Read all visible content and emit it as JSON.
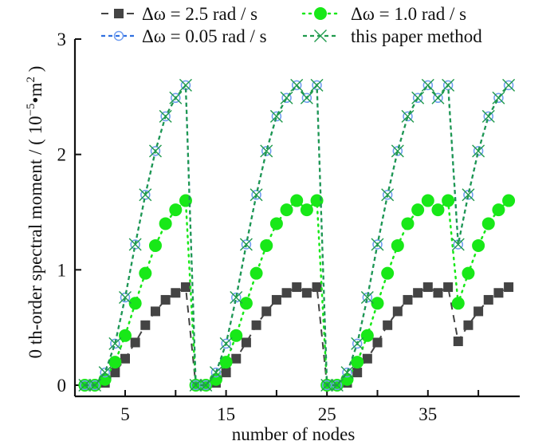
{
  "chart_data": {
    "type": "line",
    "title": "",
    "xlabel": "number of nodes",
    "ylabel": "0 th-order spectral moment  / ( 10⁻⁵•m² )",
    "ylabel_parts": {
      "main": "0 th-order spectral moment  / ( 10",
      "exp1": "−5",
      "mid": "•m",
      "exp2": "2",
      "end": " )"
    },
    "xlim": [
      0,
      47
    ],
    "ylim": [
      0,
      3
    ],
    "x_ticks": [
      5,
      10,
      15,
      20,
      25,
      30,
      35,
      40
    ],
    "x_tick_labels": [
      "5",
      "",
      "15",
      "",
      "25",
      "",
      "35",
      ""
    ],
    "y_ticks": [
      0,
      1,
      2,
      3
    ],
    "y_tick_labels": [
      "0",
      "1",
      "2",
      "3"
    ],
    "grid": false,
    "legend_position": "top",
    "x": [
      1,
      2,
      3,
      4,
      5,
      6,
      7,
      8,
      9,
      10,
      11,
      12,
      13,
      14,
      15,
      16,
      17,
      18,
      19,
      20,
      21,
      22,
      23,
      24,
      25,
      26,
      27,
      28,
      29,
      30,
      31,
      32,
      33,
      34,
      35,
      36,
      37,
      38,
      39,
      40,
      41,
      42,
      43
    ],
    "series": [
      {
        "name": "Δω = 2.5 rad / s",
        "legend_label": "Δω = 2.5 rad / s",
        "color": "#444444",
        "line_style": "long-dash",
        "marker": "square",
        "values": [
          0,
          0,
          0.02,
          0.11,
          0.23,
          0.37,
          0.52,
          0.64,
          0.74,
          0.8,
          0.85,
          0,
          0,
          0.02,
          0.11,
          0.23,
          0.37,
          0.52,
          0.64,
          0.74,
          0.8,
          0.85,
          0.8,
          0.85,
          0,
          0,
          0.02,
          0.11,
          0.23,
          0.37,
          0.52,
          0.64,
          0.74,
          0.8,
          0.85,
          0.8,
          0.85,
          0.38,
          0.52,
          0.64,
          0.74,
          0.8,
          0.85
        ]
      },
      {
        "name": "Δω = 1.0 rad / s",
        "legend_label": "Δω = 1.0 rad / s",
        "color": "#18e818",
        "line_style": "dot",
        "marker": "filled-circle",
        "values": [
          0,
          0,
          0.05,
          0.2,
          0.43,
          0.71,
          0.97,
          1.21,
          1.4,
          1.52,
          1.6,
          0,
          0,
          0.05,
          0.2,
          0.43,
          0.71,
          0.97,
          1.21,
          1.4,
          1.52,
          1.6,
          1.52,
          1.6,
          0,
          0,
          0.05,
          0.2,
          0.43,
          0.71,
          0.97,
          1.21,
          1.4,
          1.52,
          1.6,
          1.52,
          1.6,
          0.71,
          0.97,
          1.21,
          1.4,
          1.52,
          1.6
        ]
      },
      {
        "name": "Δω = 0.05 rad / s",
        "legend_label": "Δω = 0.05 rad / s",
        "color": "#2f6fe0",
        "line_style": "dash",
        "marker": "open-circle",
        "values": [
          0,
          0,
          0.11,
          0.36,
          0.76,
          1.22,
          1.65,
          2.03,
          2.33,
          2.49,
          2.6,
          0,
          0,
          0.11,
          0.36,
          0.76,
          1.22,
          1.65,
          2.03,
          2.33,
          2.49,
          2.6,
          2.49,
          2.6,
          0,
          0,
          0.11,
          0.36,
          0.76,
          1.22,
          1.65,
          2.03,
          2.33,
          2.49,
          2.6,
          2.49,
          2.6,
          1.22,
          1.65,
          2.03,
          2.33,
          2.49,
          2.6
        ]
      },
      {
        "name": "this paper method",
        "legend_label": "this paper method",
        "color": "#1f9a4c",
        "line_style": "dash",
        "marker": "x",
        "values": [
          0,
          0,
          0.11,
          0.36,
          0.76,
          1.22,
          1.65,
          2.03,
          2.33,
          2.49,
          2.6,
          0,
          0,
          0.11,
          0.36,
          0.76,
          1.22,
          1.65,
          2.03,
          2.33,
          2.49,
          2.6,
          2.49,
          2.6,
          0,
          0,
          0.11,
          0.36,
          0.76,
          1.22,
          1.65,
          2.03,
          2.33,
          2.49,
          2.6,
          2.49,
          2.6,
          1.22,
          1.65,
          2.03,
          2.33,
          2.49,
          2.6
        ]
      }
    ]
  }
}
